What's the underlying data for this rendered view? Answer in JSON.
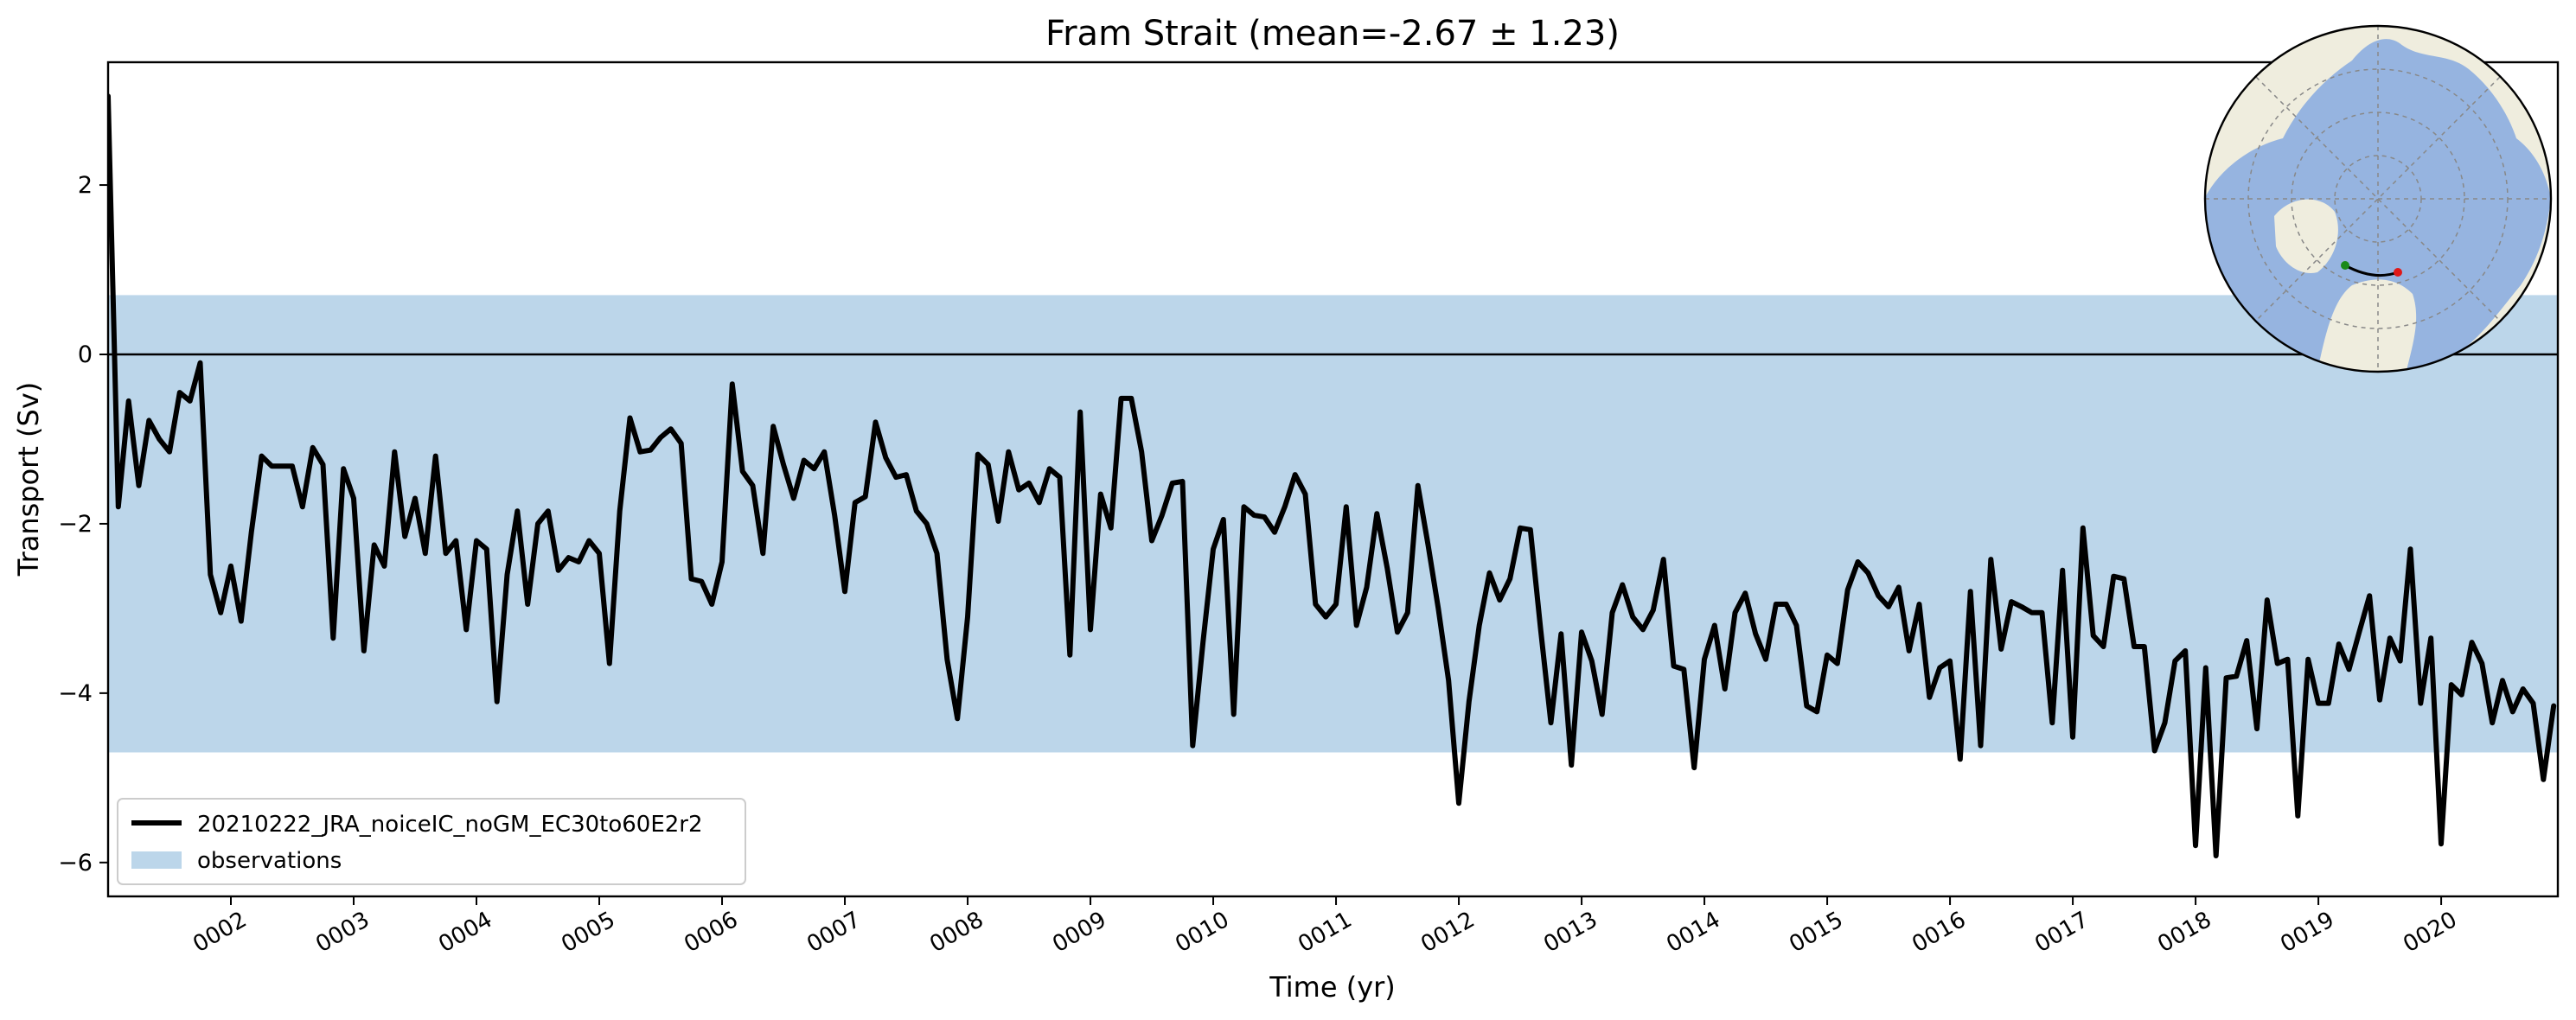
{
  "chart_data": {
    "type": "line",
    "title": "Fram Strait (mean=-2.67 ± 1.23)",
    "xlabel": "Time (yr)",
    "ylabel": "Transport (Sv)",
    "xlim": [
      1.0,
      20.95
    ],
    "ylim": [
      -6.4,
      3.45
    ],
    "yticks": [
      2,
      0,
      -2,
      -4,
      -6
    ],
    "ytick_labels": [
      "2",
      "0",
      "−2",
      "−4",
      "−6"
    ],
    "xticks": [
      2,
      3,
      4,
      5,
      6,
      7,
      8,
      9,
      10,
      11,
      12,
      13,
      14,
      15,
      16,
      17,
      18,
      19,
      20
    ],
    "xtick_labels": [
      "0002",
      "0003",
      "0004",
      "0005",
      "0006",
      "0007",
      "0008",
      "0009",
      "0010",
      "0011",
      "0012",
      "0013",
      "0014",
      "0015",
      "0016",
      "0017",
      "0018",
      "0019",
      "0020"
    ],
    "zero_line": 0,
    "observations_band": {
      "name": "observations",
      "ymin": -4.7,
      "ymax": 0.7,
      "color": "#bcd6ea"
    },
    "legend": {
      "location": "lower-left",
      "entries": [
        "20210222_JRA_noiceIC_noGM_EC30to60E2r2",
        "observations"
      ]
    },
    "grid": false,
    "inset_map": {
      "projection": "north-polar-stereographic",
      "section": "Fram Strait",
      "land_color": "#efedde",
      "ocean_color": "#96b4e0",
      "start_marker": "#1a8a1a",
      "end_marker": "#e01818"
    },
    "series": [
      {
        "name": "20210222_JRA_noiceIC_noGM_EC30to60E2r2",
        "color": "#000000",
        "x_start": 1.0,
        "x_step": 0.08333,
        "values": [
          3.05,
          -1.8,
          -0.55,
          -1.55,
          -0.78,
          -1.0,
          -1.15,
          -0.45,
          -0.55,
          -0.1,
          -2.6,
          -3.05,
          -2.5,
          -3.15,
          -2.1,
          -1.2,
          -1.32,
          -1.32,
          -1.32,
          -1.8,
          -1.1,
          -1.3,
          -3.35,
          -1.35,
          -1.7,
          -3.5,
          -2.25,
          -2.5,
          -1.15,
          -2.15,
          -1.7,
          -2.35,
          -1.2,
          -2.35,
          -2.2,
          -3.25,
          -2.2,
          -2.3,
          -4.1,
          -2.6,
          -1.85,
          -2.95,
          -2.0,
          -1.85,
          -2.55,
          -2.4,
          -2.45,
          -2.2,
          -2.35,
          -3.65,
          -1.85,
          -0.75,
          -1.15,
          -1.13,
          -0.98,
          -0.88,
          -1.05,
          -2.65,
          -2.68,
          -2.95,
          -2.45,
          -0.35,
          -1.38,
          -1.55,
          -2.35,
          -0.85,
          -1.3,
          -1.7,
          -1.25,
          -1.35,
          -1.15,
          -1.9,
          -2.8,
          -1.75,
          -1.68,
          -0.8,
          -1.22,
          -1.45,
          -1.42,
          -1.85,
          -2.0,
          -2.35,
          -3.6,
          -4.3,
          -3.1,
          -1.18,
          -1.3,
          -1.97,
          -1.15,
          -1.6,
          -1.52,
          -1.75,
          -1.35,
          -1.45,
          -3.55,
          -0.68,
          -3.25,
          -1.65,
          -2.05,
          -0.52,
          -0.52,
          -1.15,
          -2.2,
          -1.9,
          -1.52,
          -1.5,
          -4.62,
          -3.4,
          -2.3,
          -1.95,
          -4.25,
          -1.8,
          -1.9,
          -1.92,
          -2.1,
          -1.8,
          -1.42,
          -1.65,
          -2.95,
          -3.1,
          -2.95,
          -1.8,
          -3.2,
          -2.75,
          -1.88,
          -2.52,
          -3.28,
          -3.05,
          -1.55,
          -2.25,
          -3.0,
          -3.85,
          -5.3,
          -4.1,
          -3.2,
          -2.58,
          -2.9,
          -2.65,
          -2.05,
          -2.07,
          -3.25,
          -4.35,
          -3.3,
          -4.85,
          -3.28,
          -3.62,
          -4.25,
          -3.05,
          -2.72,
          -3.1,
          -3.25,
          -3.02,
          -2.42,
          -3.68,
          -3.72,
          -4.88,
          -3.6,
          -3.2,
          -3.95,
          -3.05,
          -2.82,
          -3.3,
          -3.6,
          -2.95,
          -2.95,
          -3.2,
          -4.15,
          -4.22,
          -3.55,
          -3.65,
          -2.78,
          -2.45,
          -2.58,
          -2.85,
          -2.98,
          -2.75,
          -3.5,
          -2.95,
          -4.05,
          -3.7,
          -3.62,
          -4.78,
          -2.8,
          -4.62,
          -2.42,
          -3.48,
          -2.92,
          -2.98,
          -3.05,
          -3.05,
          -4.35,
          -2.55,
          -4.52,
          -2.05,
          -3.32,
          -3.45,
          -2.62,
          -2.65,
          -3.45,
          -3.45,
          -4.68,
          -4.35,
          -3.62,
          -3.5,
          -5.8,
          -3.7,
          -5.92,
          -3.82,
          -3.8,
          -3.38,
          -4.42,
          -2.9,
          -3.65,
          -3.6,
          -5.45,
          -3.6,
          -4.12,
          -4.12,
          -3.42,
          -3.72,
          -3.28,
          -2.85,
          -4.08,
          -3.35,
          -3.62,
          -2.3,
          -4.12,
          -3.35,
          -5.78,
          -3.9,
          -4.02,
          -3.4,
          -3.65,
          -4.35,
          -3.85,
          -4.22,
          -3.95,
          -4.12,
          -5.02,
          -4.15
        ]
      }
    ]
  }
}
